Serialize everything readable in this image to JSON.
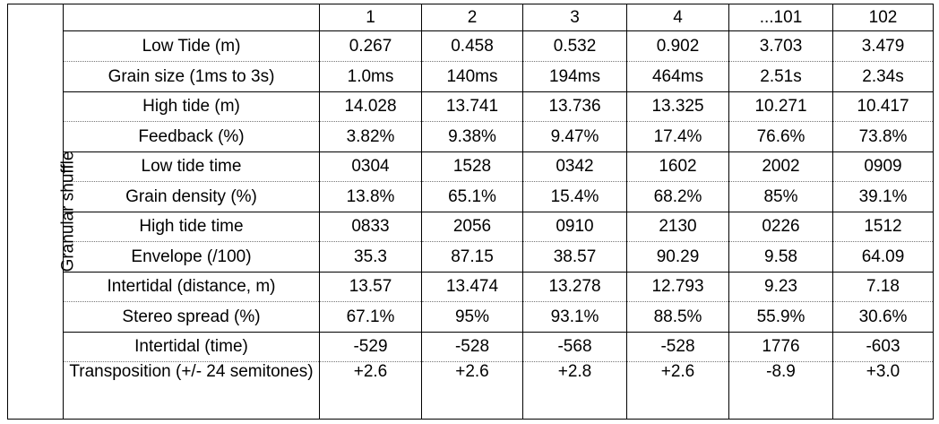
{
  "side_label": "Granular shuffle",
  "columns": [
    "",
    "1",
    "2",
    "3",
    "4",
    "...101",
    "102"
  ],
  "rows": [
    {
      "label": "Low Tide (m)",
      "values": [
        "0.267",
        "0.458",
        "0.532",
        "0.902",
        "3.703",
        "3.479"
      ]
    },
    {
      "label": "Grain size (1ms to 3s)",
      "values": [
        "1.0ms",
        "140ms",
        "194ms",
        "464ms",
        "2.51s",
        "2.34s"
      ]
    },
    {
      "label": "High tide (m)",
      "values": [
        "14.028",
        "13.741",
        "13.736",
        "13.325",
        "10.271",
        "10.417"
      ]
    },
    {
      "label": "Feedback (%)",
      "values": [
        "3.82%",
        "9.38%",
        "9.47%",
        "17.4%",
        "76.6%",
        "73.8%"
      ]
    },
    {
      "label": "Low tide time",
      "values": [
        "0304",
        "1528",
        "0342",
        "1602",
        "2002",
        "0909"
      ]
    },
    {
      "label": "Grain density (%)",
      "values": [
        "13.8%",
        "65.1%",
        "15.4%",
        "68.2%",
        "85%",
        "39.1%"
      ]
    },
    {
      "label": "High tide time",
      "values": [
        "0833",
        "2056",
        "0910",
        "2130",
        "0226",
        "1512"
      ]
    },
    {
      "label": "Envelope (/100)",
      "values": [
        "35.3",
        "87.15",
        "38.57",
        "90.29",
        "9.58",
        "64.09"
      ]
    },
    {
      "label": "Intertidal (distance, m)",
      "values": [
        "13.57",
        "13.474",
        "13.278",
        "12.793",
        "9.23",
        "7.18"
      ]
    },
    {
      "label": "Stereo spread (%)",
      "values": [
        "67.1%",
        "95%",
        "93.1%",
        "88.5%",
        "55.9%",
        "30.6%"
      ]
    },
    {
      "label": "Intertidal (time)",
      "values": [
        "-529",
        "-528",
        "-568",
        "-528",
        "1776",
        "-603"
      ]
    },
    {
      "label": "Transposition (+/- 24 semitones)",
      "values": [
        "+2.6",
        "+2.6",
        "+2.8",
        "+2.6",
        "-8.9",
        "+3.0"
      ]
    }
  ]
}
